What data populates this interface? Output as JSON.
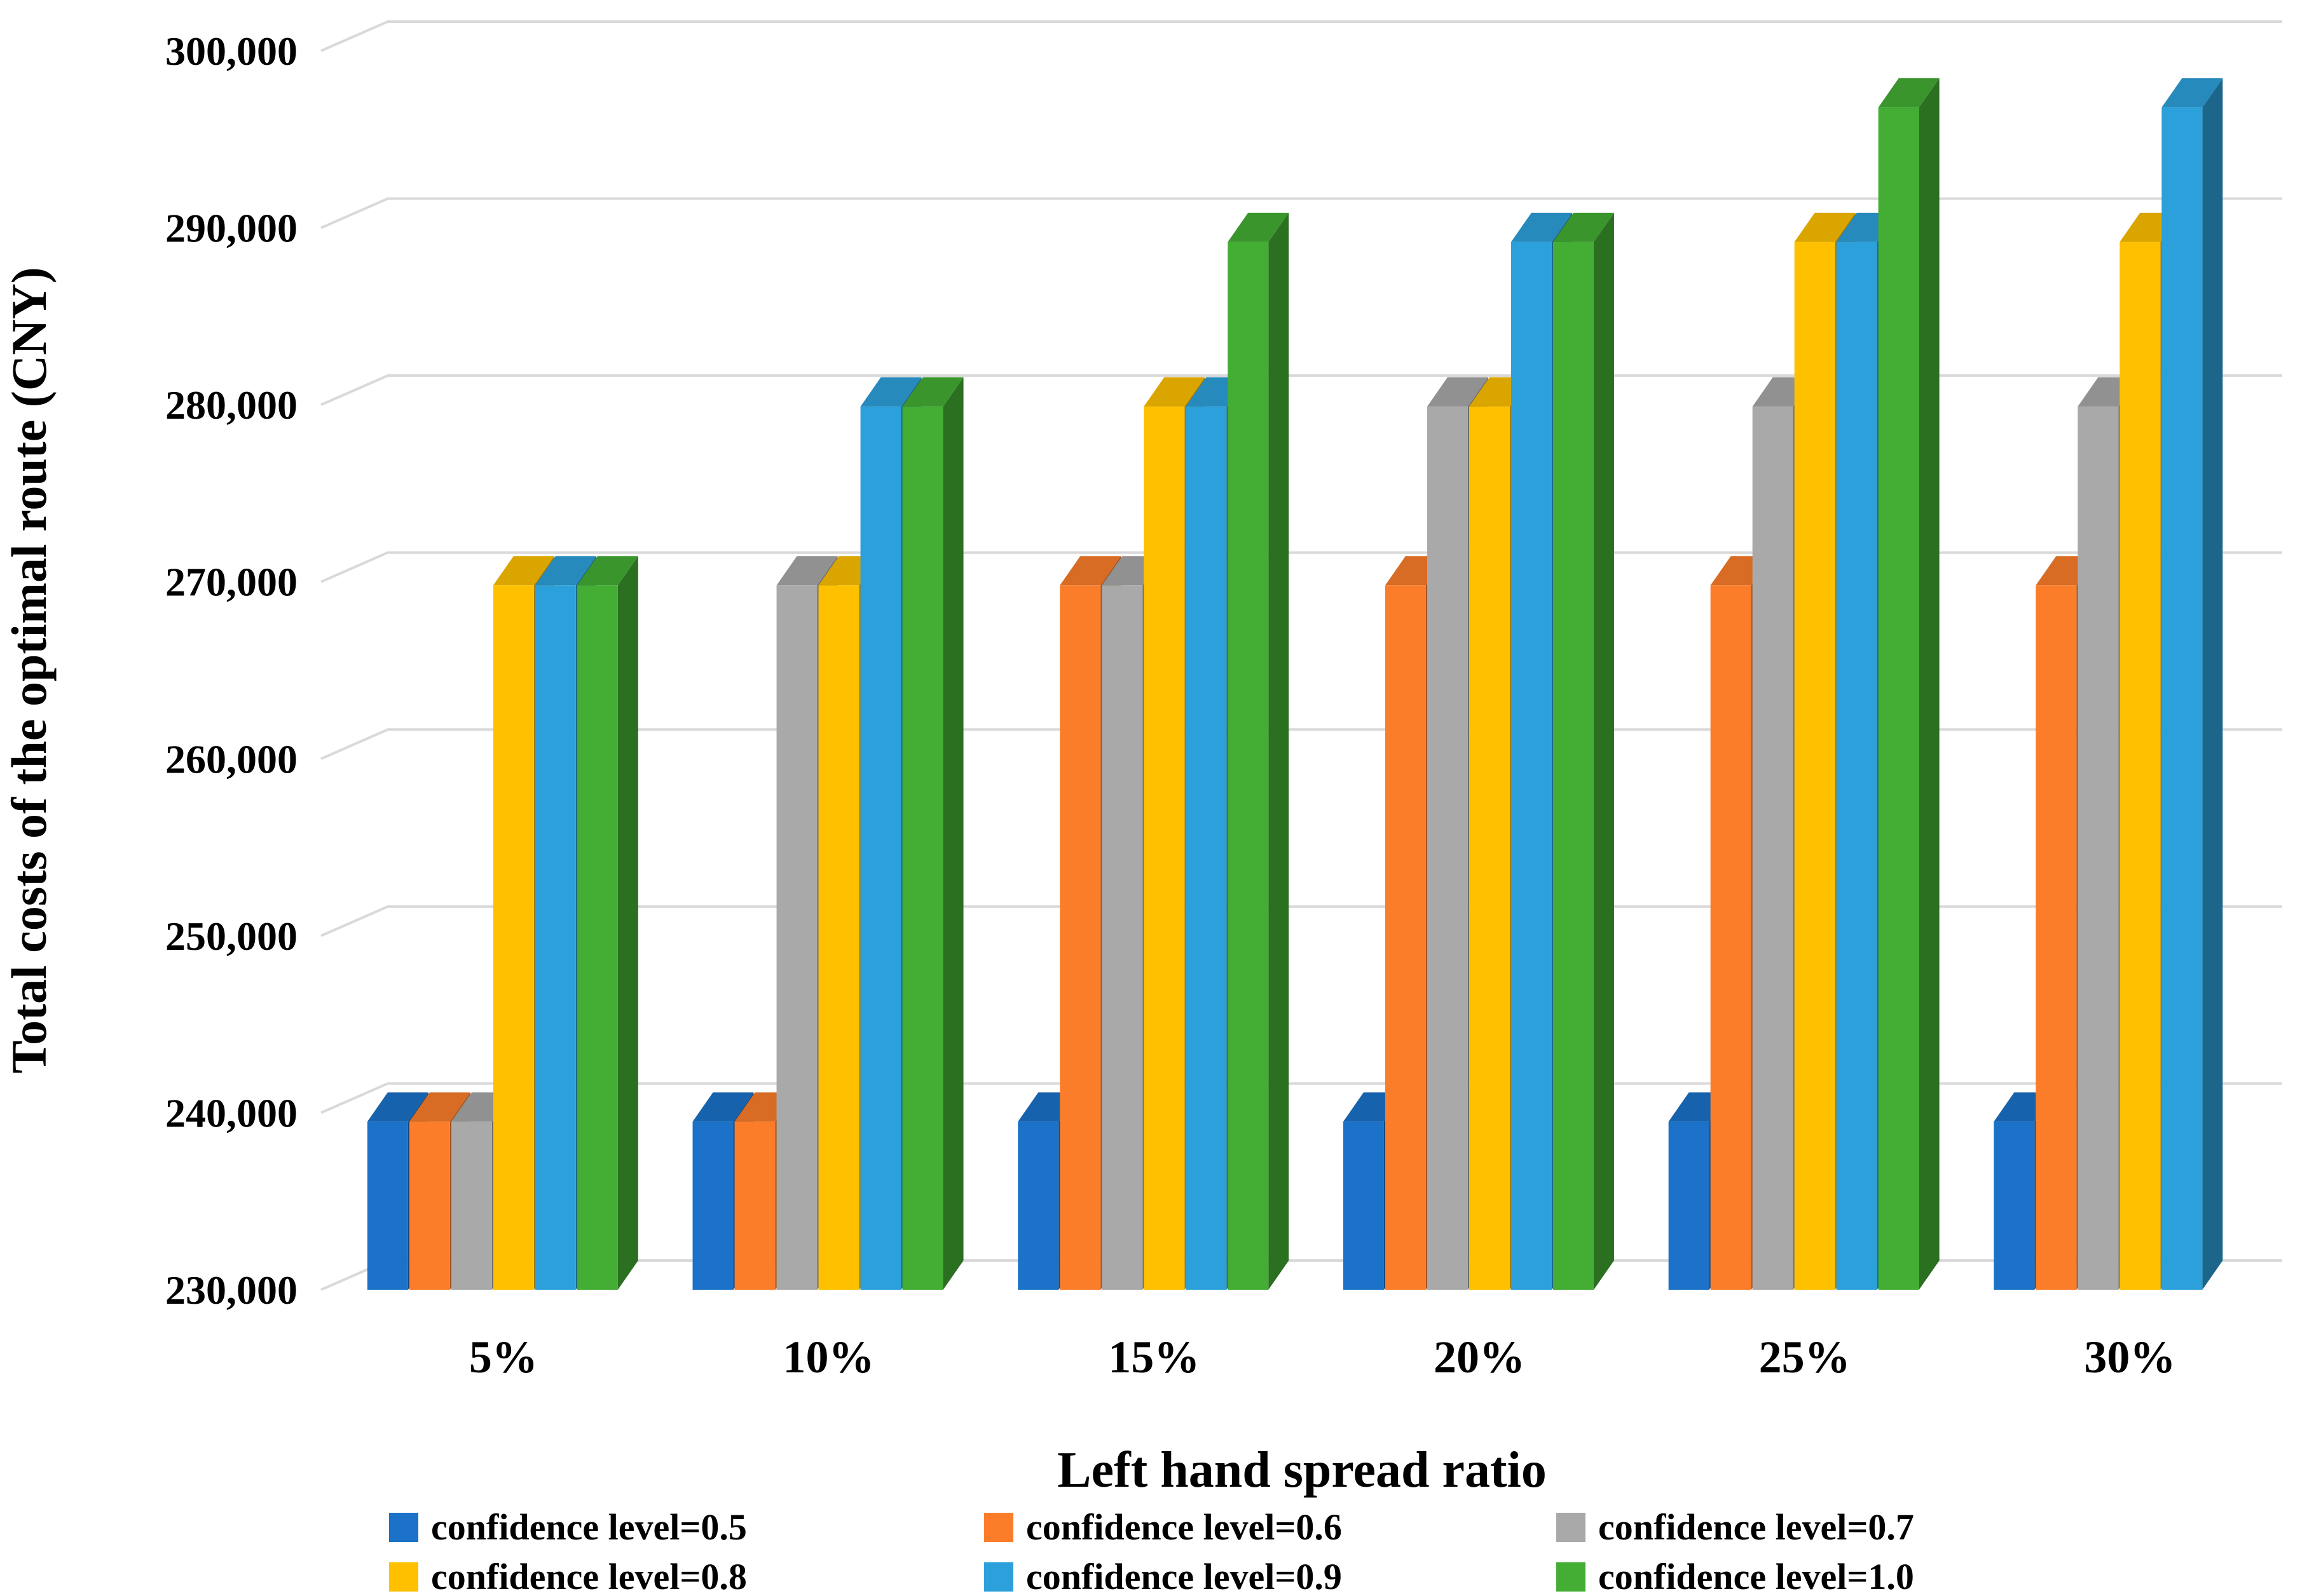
{
  "figure": {
    "background": "#ffffff",
    "gridline_color": "#d9d9d9",
    "text_color": "#000000"
  },
  "chart_data": {
    "type": "bar",
    "style": "3d-clustered-column",
    "xlabel": "Left hand spread ratio",
    "ylabel": "Total costs of the optimal route (CNY)",
    "categories": [
      "5%",
      "10%",
      "15%",
      "20%",
      "25%",
      "30%"
    ],
    "series": [
      {
        "name": "confidence level=0.5",
        "color": "#1B72C8",
        "values": [
          239500,
          239500,
          239500,
          239500,
          239500,
          239500
        ]
      },
      {
        "name": "confidence level=0.6",
        "color": "#FB7D2A",
        "values": [
          239500,
          239500,
          269800,
          269800,
          269800,
          269800
        ]
      },
      {
        "name": "confidence level=0.7",
        "color": "#A9A9A9",
        "values": [
          239500,
          269800,
          269800,
          279900,
          279900,
          279900
        ]
      },
      {
        "name": "confidence level=0.8",
        "color": "#FFC000",
        "values": [
          269800,
          269800,
          279900,
          279900,
          289200,
          289200
        ]
      },
      {
        "name": "confidence level=0.9",
        "color": "#2CA0DB",
        "values": [
          269800,
          279900,
          279900,
          289200,
          289200,
          296800
        ]
      },
      {
        "name": "confidence level=1.0",
        "color": "#43AD34",
        "values": [
          269800,
          279900,
          289200,
          289200,
          296800,
          null
        ]
      }
    ],
    "ylim": [
      230000,
      300000
    ],
    "ytick_step": 10000,
    "ytick_labels": [
      "230,000",
      "240,000",
      "250,000",
      "260,000",
      "270,000",
      "280,000",
      "290,000",
      "300,000"
    ],
    "grid": true,
    "legend_position": "bottom",
    "legend_rows": [
      [
        "confidence level=0.5",
        "confidence level=0.6",
        "confidence level=0.7"
      ],
      [
        "confidence level=0.8",
        "confidence level=0.9",
        "confidence level=1.0"
      ]
    ]
  }
}
